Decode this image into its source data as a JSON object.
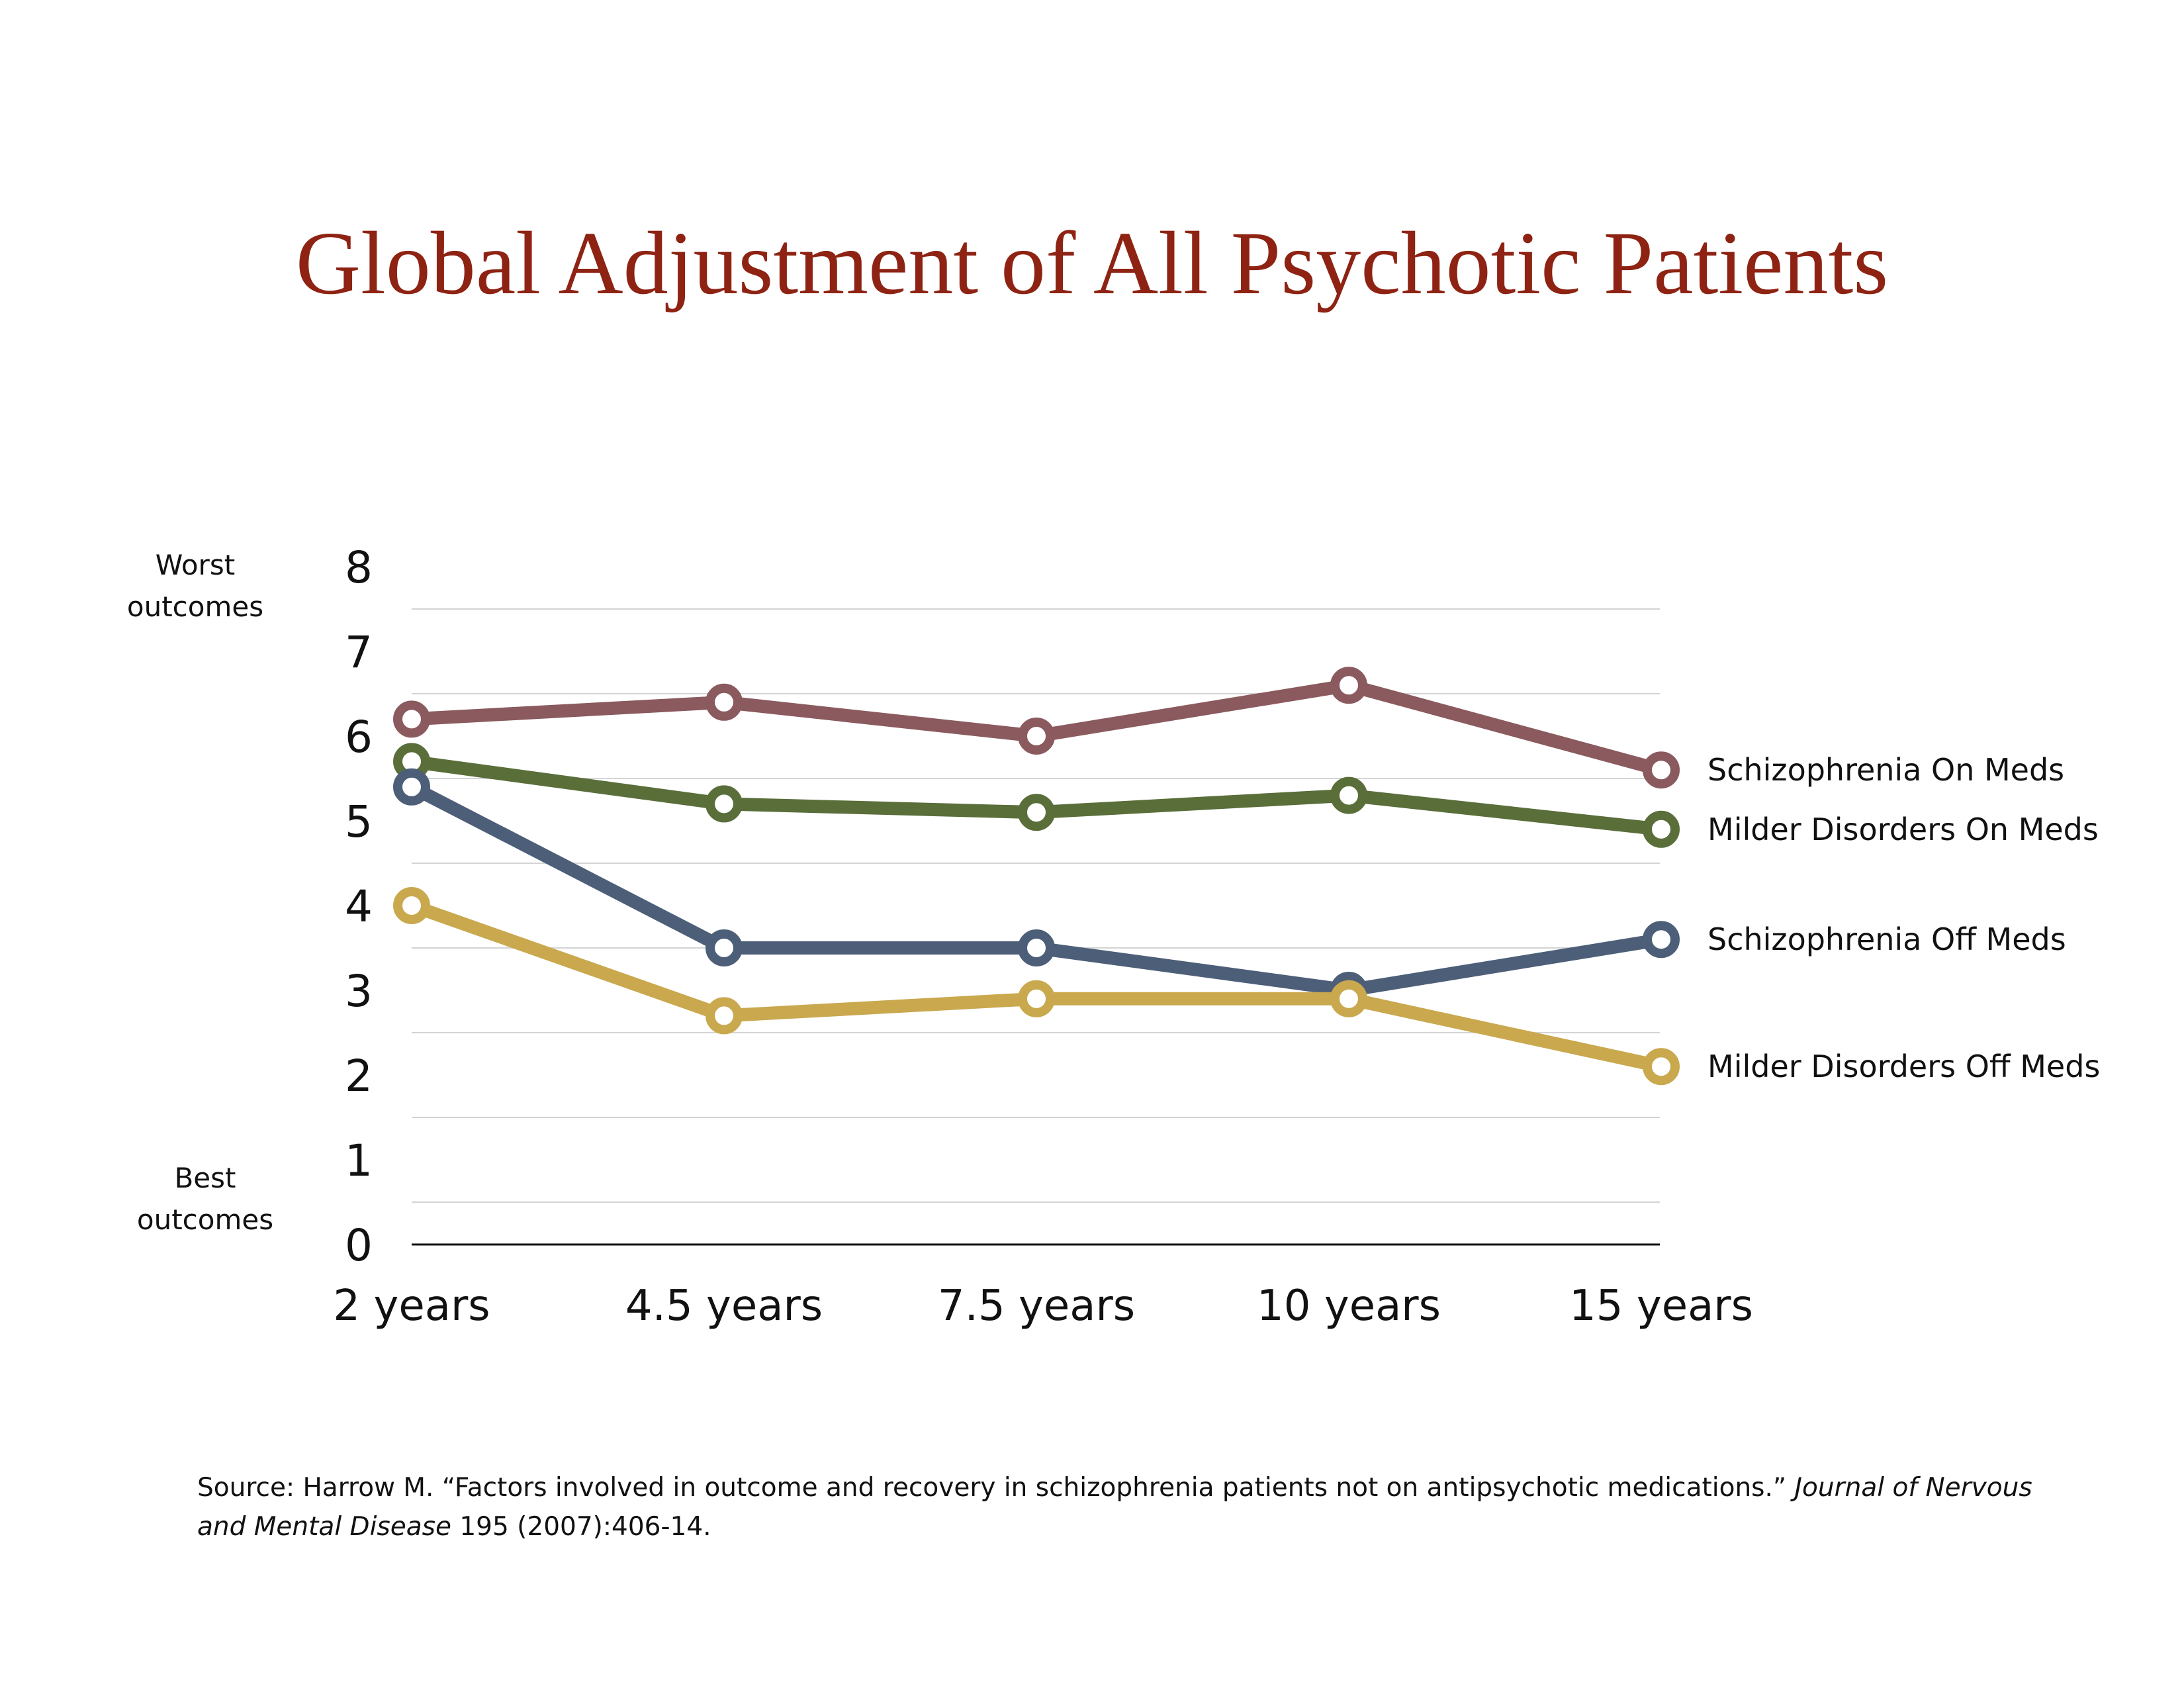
{
  "chart_data": {
    "type": "line",
    "title": "Global Adjustment of All Psychotic Patients",
    "categories": [
      "2 years",
      "4.5 years",
      "7.5 years",
      "10 years",
      "15 years"
    ],
    "y_ticks": [
      "0",
      "1",
      "2",
      "3",
      "4",
      "5",
      "6",
      "7",
      "8"
    ],
    "ylim": [
      0,
      8
    ],
    "grid": true,
    "y_top_label": "Worst outcomes",
    "y_bottom_label": "Best outcomes",
    "series": [
      {
        "name": "Schizophrenia On Meds",
        "color": "#8a5a5e",
        "values": [
          6.2,
          6.4,
          6.0,
          6.6,
          5.6
        ]
      },
      {
        "name": "Milder Disorders On Meds",
        "color": "#5a6e3a",
        "values": [
          5.7,
          5.2,
          5.1,
          5.3,
          4.9
        ]
      },
      {
        "name": "Schizophrenia Off Meds",
        "color": "#4c5e78",
        "values": [
          5.4,
          3.5,
          3.5,
          3.0,
          3.6
        ]
      },
      {
        "name": "Milder Disorders Off Meds",
        "color": "#c9a84e",
        "values": [
          4.0,
          2.7,
          2.9,
          2.9,
          2.1
        ]
      }
    ]
  },
  "source": {
    "prefix": "Source: Harrow M. “Factors involved in outcome and recovery in schizophrenia patients not on antipsychotic medications.” ",
    "journal": "Journal of Nervous and Mental Disease",
    "suffix": " 195 (2007):406-14."
  }
}
